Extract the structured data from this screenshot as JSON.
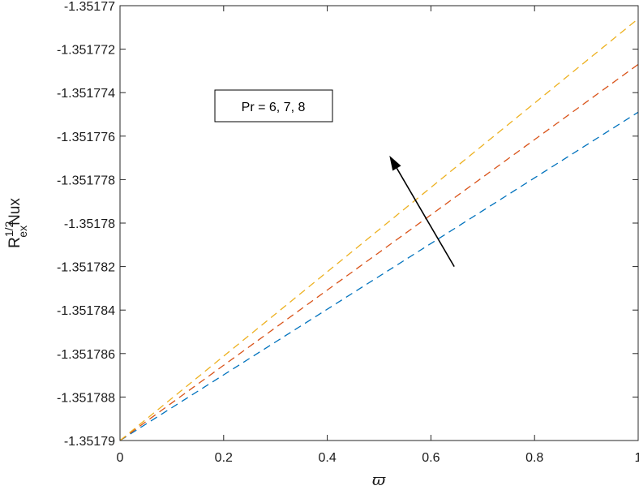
{
  "chart_data": {
    "type": "line",
    "title": "",
    "xlabel": "ϖ",
    "ylabel": {
      "base": "R",
      "superscript": "1/2",
      "subscript": "ex",
      "suffix": "Nux"
    },
    "xlim": [
      0,
      1
    ],
    "ylim": [
      -1.35179,
      -1.35177
    ],
    "x_ticks": [
      0,
      0.2,
      0.4,
      0.6,
      0.8,
      1
    ],
    "x_tick_labels": [
      "0",
      "0.2",
      "0.4",
      "0.6",
      "0.8",
      "1"
    ],
    "y_ticks": [
      -1.35179,
      -1.351788,
      -1.351786,
      -1.351784,
      -1.351782,
      -1.35178,
      -1.351778,
      -1.351776,
      -1.351774,
      -1.351772,
      -1.35177
    ],
    "y_tick_labels": [
      "-1.35179",
      "-1.351788",
      "-1.351786",
      "-1.351784",
      "-1.351782",
      "-1.35178",
      "-1.351778",
      "-1.351776",
      "-1.351774",
      "-1.351772",
      "-1.35177"
    ],
    "grid": false,
    "line_style": "dashed",
    "series": [
      {
        "color": "#0072bd",
        "x": [
          0,
          1
        ],
        "y": [
          -1.35179,
          -1.3517749
        ]
      },
      {
        "color": "#d95319",
        "x": [
          0,
          1
        ],
        "y": [
          -1.35179,
          -1.3517727
        ]
      },
      {
        "color": "#edb120",
        "x": [
          0,
          1
        ],
        "y": [
          -1.35179,
          -1.3517706
        ]
      }
    ],
    "annotation": {
      "text": "Pr = 6, 7, 8",
      "arrow_from": [
        0.645,
        -1.351782
      ],
      "arrow_to": [
        0.52,
        -1.3517769
      ]
    }
  }
}
